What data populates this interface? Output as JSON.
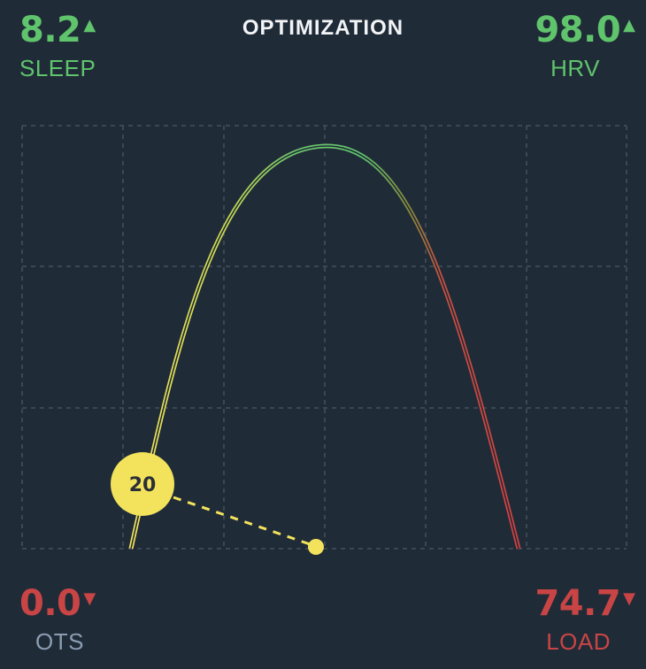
{
  "title": "OPTIMIZATION",
  "metrics": {
    "sleep": {
      "value": "8.2",
      "label": "SLEEP",
      "trend": "up",
      "arrow": "▲",
      "color": "#5fc46c"
    },
    "hrv": {
      "value": "98.0",
      "label": "HRV",
      "trend": "up",
      "arrow": "▲",
      "color": "#5fc46c"
    },
    "ots": {
      "value": "0.0",
      "label": "OTS",
      "trend": "down",
      "arrow": "▼",
      "value_color": "#c94545",
      "label_color": "#8a9db1"
    },
    "load": {
      "value": "74.7",
      "label": "LOAD",
      "trend": "down",
      "arrow": "▼",
      "color": "#c94545"
    }
  },
  "marker": {
    "label": "20",
    "color": "#f3e35c"
  },
  "colors": {
    "background": "#202b38",
    "grid": "#46515e",
    "curve_start": "#f4e45a",
    "curve_peak": "#5fc46c",
    "curve_end": "#d84040"
  }
}
